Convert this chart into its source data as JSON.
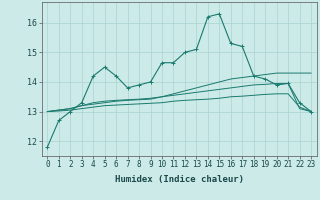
{
  "xlabel": "Humidex (Indice chaleur)",
  "ylabel": "",
  "background_color": "#cceae8",
  "grid_color": "#aad4d0",
  "line_color": "#1a7a6e",
  "x_values": [
    0,
    1,
    2,
    3,
    4,
    5,
    6,
    7,
    8,
    9,
    10,
    11,
    12,
    13,
    14,
    15,
    16,
    17,
    18,
    19,
    20,
    21,
    22,
    23
  ],
  "series1": [
    11.8,
    12.7,
    13.0,
    13.3,
    14.2,
    14.5,
    14.2,
    13.8,
    13.9,
    14.0,
    14.65,
    14.65,
    15.0,
    15.1,
    16.2,
    16.3,
    15.3,
    15.2,
    14.2,
    14.1,
    13.9,
    13.95,
    13.3,
    13.0
  ],
  "series2": [
    13.0,
    13.05,
    13.1,
    13.2,
    13.25,
    13.3,
    13.35,
    13.38,
    13.4,
    13.42,
    13.5,
    13.6,
    13.7,
    13.8,
    13.9,
    14.0,
    14.1,
    14.15,
    14.2,
    14.25,
    14.3,
    14.3,
    14.3,
    14.3
  ],
  "series3": [
    13.0,
    13.05,
    13.1,
    13.2,
    13.3,
    13.35,
    13.38,
    13.4,
    13.42,
    13.45,
    13.5,
    13.55,
    13.6,
    13.65,
    13.7,
    13.75,
    13.8,
    13.85,
    13.9,
    13.92,
    13.95,
    13.95,
    13.1,
    13.0
  ],
  "series4": [
    13.0,
    13.02,
    13.05,
    13.1,
    13.15,
    13.2,
    13.22,
    13.24,
    13.26,
    13.28,
    13.3,
    13.35,
    13.38,
    13.4,
    13.42,
    13.45,
    13.5,
    13.52,
    13.55,
    13.58,
    13.6,
    13.6,
    13.15,
    13.0
  ],
  "ylim": [
    11.5,
    16.7
  ],
  "yticks": [
    12,
    13,
    14,
    15,
    16
  ],
  "xticks": [
    0,
    1,
    2,
    3,
    4,
    5,
    6,
    7,
    8,
    9,
    10,
    11,
    12,
    13,
    14,
    15,
    16,
    17,
    18,
    19,
    20,
    21,
    22,
    23
  ],
  "tick_fontsize": 5.5,
  "xlabel_fontsize": 6.5
}
